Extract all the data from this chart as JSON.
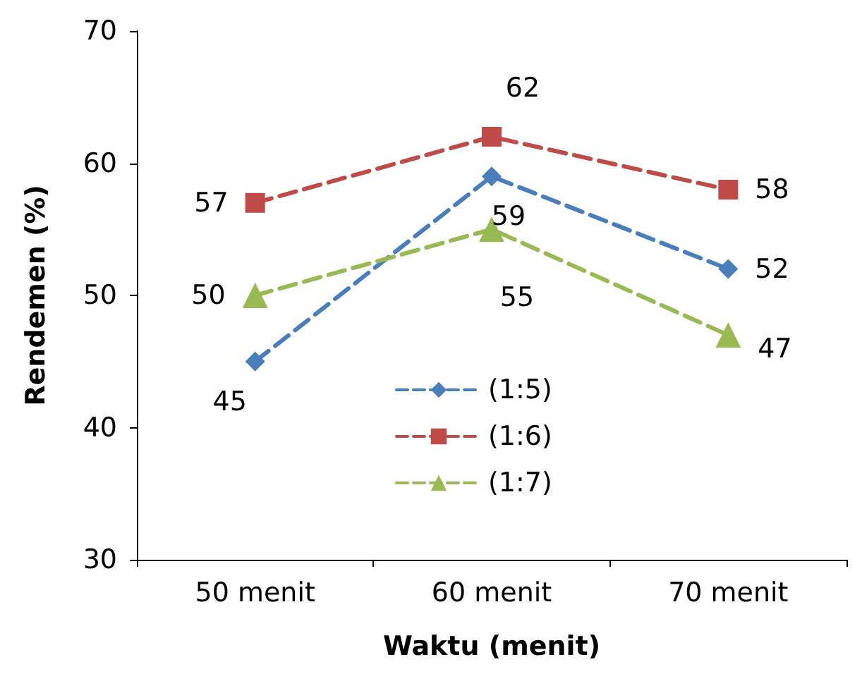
{
  "chart_data": {
    "type": "line",
    "xlabel": "Waktu (menit)",
    "ylabel": "Rendemen (%)",
    "categories": [
      "50 menit",
      "60 menit",
      "70 menit"
    ],
    "series": [
      {
        "name": "(1:5)",
        "color": "#4a7ebb",
        "marker": "diamond",
        "values": [
          45,
          59,
          52
        ]
      },
      {
        "name": "(1:6)",
        "color": "#be4b48",
        "marker": "square",
        "values": [
          57,
          62,
          58
        ]
      },
      {
        "name": "(1:7)",
        "color": "#98b954",
        "marker": "triangle",
        "values": [
          50,
          55,
          47
        ]
      }
    ],
    "ylim": [
      30,
      70
    ],
    "yticks": [
      30,
      40,
      50,
      60,
      70
    ],
    "grid": false,
    "legend": "bottom",
    "line_style": "dashed",
    "data_labels": true
  }
}
